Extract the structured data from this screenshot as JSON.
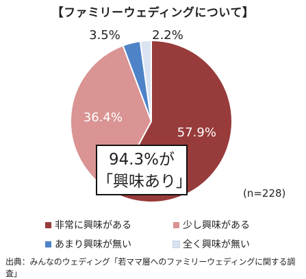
{
  "chart_data": {
    "type": "pie",
    "title": "【ファミリーウェディングについて】",
    "categories": [
      "非常に興味がある",
      "少し興味がある",
      "あまり興味が無い",
      "全く興味が無い"
    ],
    "values": [
      57.9,
      36.4,
      3.5,
      2.2
    ],
    "value_labels": [
      "57.9%",
      "36.4%",
      "3.5%",
      "2.2%"
    ],
    "colors": [
      "#983b3b",
      "#d99493",
      "#4f83c8",
      "#d9e3f1"
    ],
    "legend_position": "bottom",
    "annotation_line1": "94.3%が",
    "annotation_line2": "「興味あり」",
    "note": "(n=228)"
  },
  "source": "出典：みんなのウェディング「若ママ層へのファミリーウェディングに関する調査」"
}
